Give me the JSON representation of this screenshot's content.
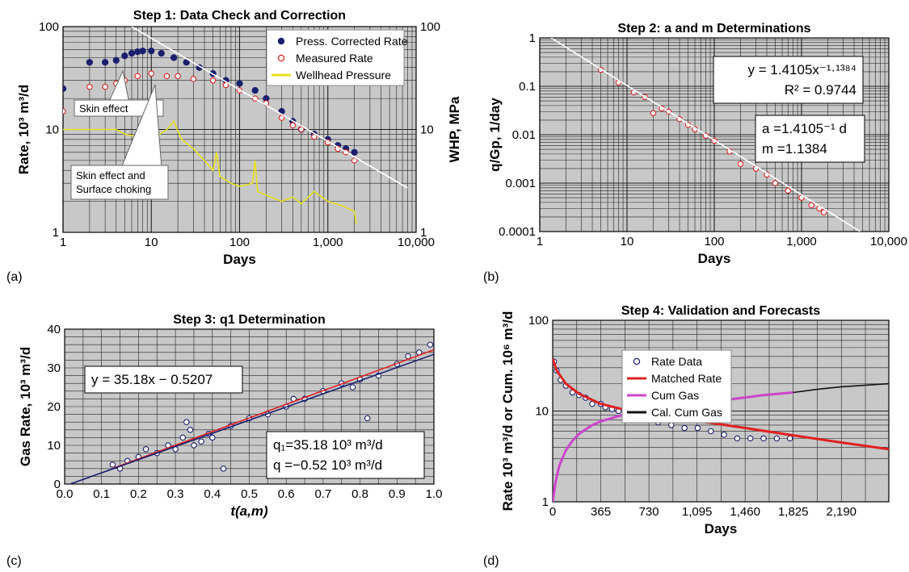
{
  "panel_labels": [
    "(a)",
    "(b)",
    "(c)",
    "(d)"
  ],
  "colors": {
    "plot_bg": "#c8c8c8",
    "grid": "#222222",
    "navy": "#1a1f6e",
    "red": "#e02020",
    "yellow": "#e8e020",
    "magenta": "#cc44cc",
    "black": "#111111",
    "white": "#ffffff"
  },
  "chart_data": [
    {
      "id": "a",
      "type": "scatter",
      "title": "Step 1: Data Check and Correction",
      "xlabel": "Days",
      "ylabel": "Rate, 10³ m³/d",
      "ylabel_right": "WHP, MPa",
      "x_scale": "log",
      "y_scale": "log",
      "xlim": [
        1,
        10000
      ],
      "ylim": [
        1,
        100
      ],
      "x_ticks": [
        "1",
        "10",
        "100",
        "1,000",
        "10,000"
      ],
      "y_ticks": [
        "1",
        "10",
        "100"
      ],
      "y_ticks_right": [
        "1",
        "10",
        "100"
      ],
      "grid": true,
      "legend_position": "top-right",
      "series": [
        {
          "name": "Press. Corrected Rate",
          "marker": "filled-circle",
          "color": "#1a1f6e",
          "points": [
            [
              1,
              25
            ],
            [
              2,
              45
            ],
            [
              3,
              45
            ],
            [
              4,
              47
            ],
            [
              5,
              52
            ],
            [
              6,
              55
            ],
            [
              7,
              57
            ],
            [
              8,
              58
            ],
            [
              10,
              58
            ],
            [
              13,
              55
            ],
            [
              18,
              50
            ],
            [
              25,
              45
            ],
            [
              35,
              40
            ],
            [
              50,
              35
            ],
            [
              70,
              30
            ],
            [
              100,
              28
            ],
            [
              150,
              24
            ],
            [
              200,
              20
            ],
            [
              300,
              15
            ],
            [
              400,
              12
            ],
            [
              500,
              10
            ],
            [
              700,
              9
            ],
            [
              1000,
              8
            ],
            [
              1300,
              7
            ],
            [
              1600,
              6.5
            ],
            [
              2000,
              6
            ]
          ]
        },
        {
          "name": "Measured Rate",
          "marker": "open-circle",
          "color": "#e02020",
          "points": [
            [
              1,
              15
            ],
            [
              2,
              26
            ],
            [
              3,
              26
            ],
            [
              4,
              28
            ],
            [
              5,
              30
            ],
            [
              7,
              33
            ],
            [
              10,
              35
            ],
            [
              15,
              33
            ],
            [
              20,
              33
            ],
            [
              30,
              31
            ],
            [
              50,
              30
            ],
            [
              70,
              27
            ],
            [
              100,
              24
            ],
            [
              150,
              20
            ],
            [
              200,
              18
            ],
            [
              300,
              13
            ],
            [
              400,
              11
            ],
            [
              500,
              10
            ],
            [
              700,
              8.5
            ],
            [
              1000,
              7.5
            ],
            [
              1300,
              6.5
            ],
            [
              1600,
              6
            ],
            [
              2000,
              5
            ]
          ]
        },
        {
          "name": "Wellhead Pressure",
          "marker": "line",
          "color": "#e8e020",
          "points": [
            [
              1,
              10
            ],
            [
              4,
              10
            ],
            [
              5,
              9
            ],
            [
              10,
              8
            ],
            [
              15,
              10
            ],
            [
              18,
              12
            ],
            [
              22,
              8
            ],
            [
              30,
              6.5
            ],
            [
              40,
              5
            ],
            [
              50,
              4
            ],
            [
              55,
              6
            ],
            [
              60,
              3.5
            ],
            [
              80,
              3
            ],
            [
              100,
              2.8
            ],
            [
              140,
              3
            ],
            [
              150,
              5
            ],
            [
              160,
              2.5
            ],
            [
              200,
              2.3
            ],
            [
              300,
              2
            ],
            [
              400,
              2.2
            ],
            [
              500,
              1.9
            ],
            [
              700,
              2.5
            ],
            [
              1000,
              2
            ],
            [
              1500,
              1.8
            ],
            [
              2000,
              1.6
            ],
            [
              2100,
              1.2
            ]
          ]
        },
        {
          "name": "trend",
          "marker": "line",
          "color": "#ffffff",
          "points": [
            [
              6,
              100
            ],
            [
              8000,
              2.7
            ]
          ]
        }
      ],
      "annotations": [
        "Skin effect",
        "Skin effect and\nSurface choking"
      ]
    },
    {
      "id": "b",
      "type": "scatter",
      "title": "Step 2: a and m Determinations",
      "xlabel": "Days",
      "ylabel": "q/Gp, 1/day",
      "x_scale": "log",
      "y_scale": "log",
      "xlim": [
        1,
        10000
      ],
      "ylim": [
        0.0001,
        1
      ],
      "x_ticks": [
        "1",
        "10",
        "100",
        "1,000",
        "10,000"
      ],
      "y_ticks": [
        "0.0001",
        "0.001",
        "0.01",
        "0.1",
        "1"
      ],
      "grid": true,
      "series": [
        {
          "name": "data",
          "marker": "open-circle",
          "color": "#e02020",
          "points": [
            [
              5,
              0.22
            ],
            [
              8,
              0.12
            ],
            [
              12,
              0.075
            ],
            [
              16,
              0.06
            ],
            [
              20,
              0.028
            ],
            [
              25,
              0.035
            ],
            [
              30,
              0.03
            ],
            [
              40,
              0.021
            ],
            [
              50,
              0.016
            ],
            [
              60,
              0.013
            ],
            [
              80,
              0.0095
            ],
            [
              100,
              0.0075
            ],
            [
              150,
              0.0045
            ],
            [
              200,
              0.0025
            ],
            [
              300,
              0.002
            ],
            [
              400,
              0.0015
            ],
            [
              500,
              0.001
            ],
            [
              700,
              0.0007
            ],
            [
              1000,
              0.0005
            ],
            [
              1300,
              0.00035
            ],
            [
              1600,
              0.0003
            ],
            [
              1800,
              0.00025
            ]
          ]
        },
        {
          "name": "fit",
          "marker": "line",
          "color": "#ffffff",
          "points": [
            [
              1.35,
              1
            ],
            [
              4700,
              0.0001
            ]
          ]
        }
      ],
      "equation_lines": [
        "y = 1.4105x⁻¹·¹³⁸⁴",
        "R² = 0.9744"
      ],
      "parameter_lines": [
        "a =1.4105⁻¹ d",
        "m =1.1384"
      ]
    },
    {
      "id": "c",
      "type": "scatter",
      "title": "Step 3: q1 Determination",
      "xlabel": "t(a,m)",
      "ylabel": "Gas Rate, 10³ m³/d",
      "xlim": [
        0,
        1
      ],
      "ylim": [
        0,
        40
      ],
      "x_ticks": [
        "0.0",
        "0.1",
        "0.2",
        "0.3",
        "0.4",
        "0.5",
        "0.6",
        "0.7",
        "0.8",
        "0.9",
        "1.0"
      ],
      "y_ticks": [
        "0",
        "10",
        "20",
        "30",
        "40"
      ],
      "grid": true,
      "series": [
        {
          "name": "data",
          "marker": "open-circle",
          "color": "#1a1f6e",
          "points": [
            [
              0.13,
              5
            ],
            [
              0.15,
              4
            ],
            [
              0.17,
              6
            ],
            [
              0.2,
              7
            ],
            [
              0.22,
              9
            ],
            [
              0.25,
              8
            ],
            [
              0.28,
              10
            ],
            [
              0.3,
              9
            ],
            [
              0.32,
              12
            ],
            [
              0.33,
              16
            ],
            [
              0.34,
              14
            ],
            [
              0.35,
              10
            ],
            [
              0.37,
              11
            ],
            [
              0.39,
              13
            ],
            [
              0.4,
              12
            ],
            [
              0.43,
              4
            ],
            [
              0.45,
              15
            ],
            [
              0.5,
              17
            ],
            [
              0.55,
              18
            ],
            [
              0.6,
              20
            ],
            [
              0.62,
              22
            ],
            [
              0.65,
              22
            ],
            [
              0.7,
              24
            ],
            [
              0.75,
              26
            ],
            [
              0.78,
              25
            ],
            [
              0.8,
              27
            ],
            [
              0.82,
              17
            ],
            [
              0.85,
              28
            ],
            [
              0.9,
              31
            ],
            [
              0.93,
              33
            ],
            [
              0.96,
              34
            ],
            [
              0.99,
              36
            ]
          ]
        },
        {
          "name": "fit-red",
          "marker": "line",
          "color": "#e02020",
          "points": [
            [
              0.13,
              4.05
            ],
            [
              1,
              34.66
            ]
          ]
        },
        {
          "name": "fit-blue",
          "marker": "line",
          "color": "#1a1f6e",
          "points": [
            [
              0,
              -0.5
            ],
            [
              1,
              33.5
            ]
          ]
        }
      ],
      "equation_lines": [
        "y = 35.18x − 0.5207"
      ],
      "parameter_lines": [
        "q₁=35.18 10³ m³/d",
        "q =−0.52  10³ m³/d"
      ]
    },
    {
      "id": "d",
      "type": "scatter",
      "title": "Step 4: Validation and Forecasts",
      "xlabel": "Days",
      "ylabel": "Rate 10³ m³/d or Cum. 10⁶ m³/d",
      "y_scale": "log",
      "xlim": [
        0,
        2550
      ],
      "ylim": [
        1,
        100
      ],
      "x_ticks": [
        "0",
        "365",
        "730",
        "1,095",
        "1,460",
        "1,825",
        "2,190"
      ],
      "y_ticks": [
        "1",
        "10",
        "100"
      ],
      "grid": true,
      "legend_position": "center",
      "series": [
        {
          "name": "Rate Data",
          "marker": "open-circle",
          "color": "#1a1f6e",
          "points": [
            [
              10,
              35
            ],
            [
              30,
              28
            ],
            [
              60,
              22
            ],
            [
              100,
              19
            ],
            [
              150,
              16
            ],
            [
              200,
              15
            ],
            [
              250,
              14
            ],
            [
              300,
              12
            ],
            [
              365,
              12
            ],
            [
              400,
              11
            ],
            [
              450,
              10.5
            ],
            [
              500,
              10
            ],
            [
              550,
              9.5
            ],
            [
              600,
              8
            ],
            [
              650,
              9
            ],
            [
              700,
              8.5
            ],
            [
              730,
              8
            ],
            [
              800,
              7.5
            ],
            [
              900,
              7
            ],
            [
              1000,
              6.5
            ],
            [
              1100,
              6.5
            ],
            [
              1200,
              6
            ],
            [
              1300,
              5.5
            ],
            [
              1400,
              5
            ],
            [
              1500,
              5
            ],
            [
              1600,
              5
            ],
            [
              1700,
              5
            ],
            [
              1800,
              5
            ]
          ]
        },
        {
          "name": "Matched Rate",
          "marker": "line",
          "color": "#e02020",
          "points": [
            [
              0,
              38
            ],
            [
              30,
              28
            ],
            [
              100,
              20
            ],
            [
              200,
              15.5
            ],
            [
              365,
              12
            ],
            [
              550,
              10.3
            ],
            [
              730,
              9.3
            ],
            [
              1095,
              7.8
            ],
            [
              1460,
              6.5
            ],
            [
              1825,
              5.4
            ],
            [
              2190,
              4.5
            ],
            [
              2550,
              3.8
            ]
          ]
        },
        {
          "name": "Cum Gas",
          "marker": "line",
          "color": "#cc44cc",
          "points": [
            [
              0,
              1
            ],
            [
              20,
              1.6
            ],
            [
              50,
              2.5
            ],
            [
              100,
              3.7
            ],
            [
              150,
              4.7
            ],
            [
              200,
              5.6
            ],
            [
              300,
              7
            ],
            [
              365,
              7.7
            ],
            [
              500,
              8.8
            ],
            [
              600,
              9.5
            ],
            [
              730,
              10.2
            ],
            [
              900,
              11
            ],
            [
              1095,
              12
            ],
            [
              1300,
              13.2
            ],
            [
              1460,
              14.1
            ],
            [
              1600,
              15
            ],
            [
              1825,
              16
            ]
          ]
        },
        {
          "name": "Cal. Cum Gas",
          "marker": "line",
          "color": "#111111",
          "points": [
            [
              1825,
              16
            ],
            [
              2000,
              17.3
            ],
            [
              2190,
              18.5
            ],
            [
              2550,
              20
            ]
          ]
        }
      ]
    }
  ]
}
